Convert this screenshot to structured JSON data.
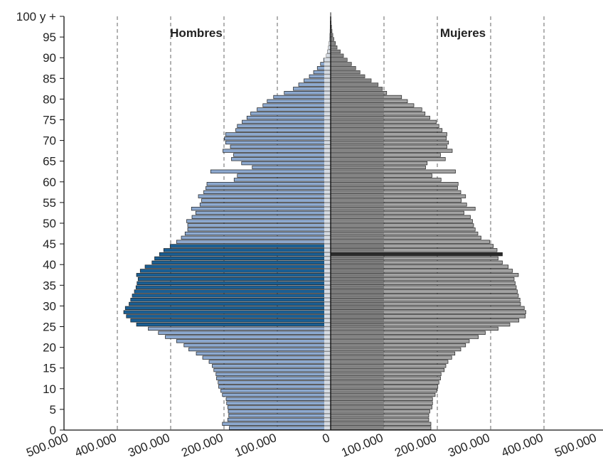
{
  "chart_data": {
    "type": "bar",
    "orientation": "horizontal",
    "subtype": "population-pyramid",
    "title": "",
    "xlabel": "",
    "ylabel": "",
    "group_labels": {
      "left": "Hombres",
      "right": "Mujeres"
    },
    "x_ticks": [
      "500.000",
      "400.000",
      "300.000",
      "200.000",
      "100.000",
      "0",
      "100.000",
      "200.000",
      "300.000",
      "400.000",
      "500.000"
    ],
    "xlim": [
      -400000,
      400000
    ],
    "y_ticks": [
      "0",
      "5",
      "10",
      "15",
      "20",
      "25",
      "30",
      "35",
      "40",
      "45",
      "50",
      "55",
      "60",
      "65",
      "70",
      "75",
      "80",
      "85",
      "90",
      "95",
      "100 y +"
    ],
    "ylim": [
      0,
      100
    ],
    "grid": {
      "vertical_dashed": true
    },
    "colors": {
      "hombres": "#8da9cf",
      "hombres_highlight": "#1a5f94",
      "mujeres": "#a3a3a3",
      "mujeres_dark": "#6e6e6e",
      "mujeres_highlight": "#2b2b2b",
      "inner_light": "#d6dce4",
      "outline": "#1e1e1e"
    },
    "highlight_ages_hombres": [
      25,
      44
    ],
    "highlight_age_mujeres": 42,
    "inner_band_max": 100000,
    "categories": [
      "0",
      "1",
      "2",
      "3",
      "4",
      "5",
      "6",
      "7",
      "8",
      "9",
      "10",
      "11",
      "12",
      "13",
      "14",
      "15",
      "16",
      "17",
      "18",
      "19",
      "20",
      "21",
      "22",
      "23",
      "24",
      "25",
      "26",
      "27",
      "28",
      "29",
      "30",
      "31",
      "32",
      "33",
      "34",
      "35",
      "36",
      "37",
      "38",
      "39",
      "40",
      "41",
      "42",
      "43",
      "44",
      "45",
      "46",
      "47",
      "48",
      "49",
      "50",
      "51",
      "52",
      "53",
      "54",
      "55",
      "56",
      "57",
      "58",
      "59",
      "60",
      "61",
      "62",
      "63",
      "64",
      "65",
      "66",
      "67",
      "68",
      "69",
      "70",
      "71",
      "72",
      "73",
      "74",
      "75",
      "76",
      "77",
      "78",
      "79",
      "80",
      "81",
      "82",
      "83",
      "84",
      "85",
      "86",
      "87",
      "88",
      "89",
      "90",
      "91",
      "92",
      "93",
      "94",
      "95",
      "96",
      "97",
      "98",
      "99",
      "100 y +"
    ],
    "series": [
      {
        "name": "Hombres",
        "values": [
          190000,
          203000,
          193000,
          191000,
          192000,
          193000,
          195000,
          196000,
          203000,
          206000,
          210000,
          211000,
          214000,
          215000,
          219000,
          222000,
          228000,
          240000,
          252000,
          266000,
          275000,
          289000,
          310000,
          323000,
          342000,
          364000,
          375000,
          383000,
          388000,
          385000,
          378000,
          375000,
          372000,
          368000,
          365000,
          363000,
          361000,
          364000,
          357000,
          348000,
          335000,
          330000,
          321000,
          313000,
          301000,
          289000,
          280000,
          273000,
          268000,
          268000,
          270000,
          260000,
          253000,
          261000,
          245000,
          242000,
          248000,
          238000,
          234000,
          232000,
          181000,
          175000,
          225000,
          147000,
          167000,
          186000,
          182000,
          202000,
          188000,
          197000,
          199000,
          197000,
          178000,
          175000,
          166000,
          157000,
          150000,
          138000,
          127000,
          119000,
          107000,
          87000,
          70000,
          60000,
          50000,
          40000,
          32000,
          25000,
          19000,
          13000,
          8000,
          6000,
          4000,
          3000,
          2000,
          1500,
          1000,
          800,
          500,
          300,
          200
        ]
      },
      {
        "name": "Mujeres",
        "values": [
          188000,
          188000,
          184000,
          184000,
          186000,
          190000,
          191000,
          191000,
          196000,
          199000,
          201000,
          203000,
          206000,
          207000,
          213000,
          216000,
          220000,
          227000,
          233000,
          244000,
          253000,
          260000,
          277000,
          290000,
          314000,
          336000,
          353000,
          365000,
          366000,
          363000,
          356000,
          355000,
          352000,
          350000,
          348000,
          346000,
          344000,
          352000,
          341000,
          333000,
          322000,
          314000,
          322000,
          312000,
          305000,
          298000,
          282000,
          276000,
          271000,
          268000,
          266000,
          262000,
          250000,
          271000,
          255000,
          245000,
          253000,
          244000,
          238000,
          239000,
          207000,
          190000,
          234000,
          178000,
          181000,
          215000,
          206000,
          228000,
          218000,
          221000,
          217000,
          218000,
          209000,
          203000,
          198000,
          186000,
          177000,
          171000,
          156000,
          144000,
          133000,
          105000,
          97000,
          89000,
          76000,
          64000,
          55000,
          47000,
          39000,
          31000,
          24000,
          18000,
          12000,
          9000,
          6000,
          4000,
          2500,
          1500,
          800,
          400,
          300
        ]
      }
    ]
  }
}
